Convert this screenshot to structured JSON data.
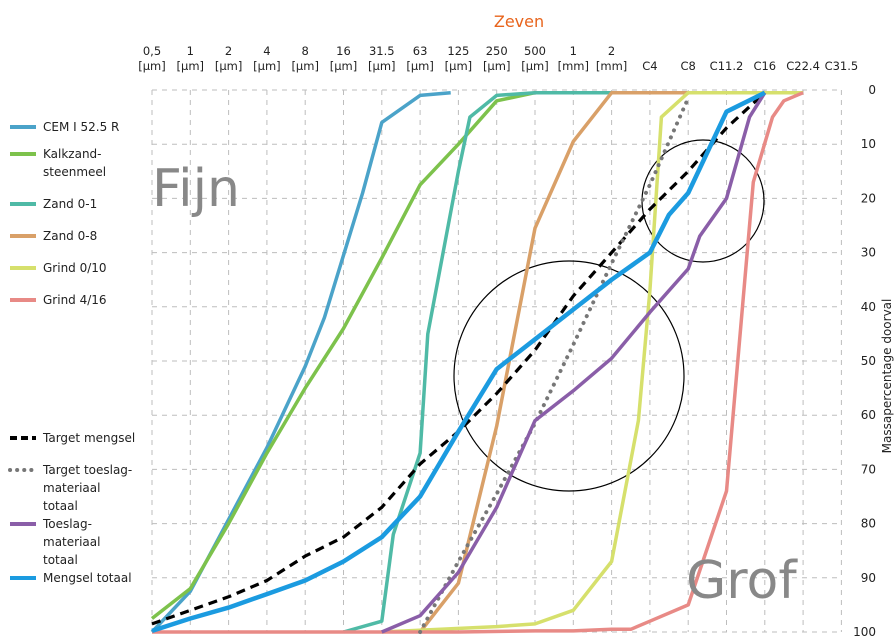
{
  "chart_data": {
    "type": "line",
    "title": "Zeven",
    "ylabel": "Massapercentage doorval",
    "x_ticks": [
      [
        "0,5",
        "[µm]"
      ],
      [
        "1",
        "[µm]"
      ],
      [
        "2",
        "[µm]"
      ],
      [
        "4",
        "[µm]"
      ],
      [
        "8",
        "[µm]"
      ],
      [
        "16",
        "[µm]"
      ],
      [
        "31.5",
        "[µm]"
      ],
      [
        "63",
        "[µm]"
      ],
      [
        "125",
        "[µm]"
      ],
      [
        "250",
        "[µm]"
      ],
      [
        "500",
        "[µm]"
      ],
      [
        "1",
        "[mm]"
      ],
      [
        "2",
        "[mm]"
      ],
      [
        "C4",
        ""
      ],
      [
        "C8",
        ""
      ],
      [
        "C11.2",
        ""
      ],
      [
        "C16",
        ""
      ],
      [
        "C22.4",
        ""
      ],
      [
        "C31.5",
        ""
      ]
    ],
    "y_ticks": [
      "0",
      "10",
      "20",
      "30",
      "40",
      "50",
      "60",
      "70",
      "80",
      "90",
      "100"
    ],
    "ylim": [
      0,
      100
    ],
    "y_inverted": true,
    "grid": true,
    "annotations": {
      "fine": "Fijn",
      "coarse": "Grof"
    },
    "series": [
      {
        "name": "CEM I 52.5 R",
        "color": "#4ba3c9",
        "width": 3.5,
        "dash": "solid",
        "points": [
          [
            0,
            100
          ],
          [
            1,
            92.5
          ],
          [
            3,
            66
          ],
          [
            4,
            51
          ],
          [
            4.5,
            42
          ],
          [
            5.5,
            19
          ],
          [
            6,
            6
          ],
          [
            7,
            1
          ],
          [
            7.8,
            0.5
          ]
        ]
      },
      {
        "name": "Kalkzand-steenmeel",
        "color": "#7dc24c",
        "width": 3.5,
        "dash": "solid",
        "points": [
          [
            0,
            97.5
          ],
          [
            1,
            92
          ],
          [
            2,
            80
          ],
          [
            3,
            67
          ],
          [
            4,
            55
          ],
          [
            5,
            44
          ],
          [
            6,
            31
          ],
          [
            7,
            17.5
          ],
          [
            8,
            10
          ],
          [
            9,
            2
          ],
          [
            10,
            0.5
          ],
          [
            11,
            0.5
          ]
        ]
      },
      {
        "name": "Zand 0-1",
        "color": "#4fbaa6",
        "width": 3.5,
        "dash": "solid",
        "points": [
          [
            5,
            100
          ],
          [
            6,
            98
          ],
          [
            6.3,
            82
          ],
          [
            7,
            67
          ],
          [
            7.2,
            45
          ],
          [
            7.6,
            30
          ],
          [
            8,
            15
          ],
          [
            8.3,
            5
          ],
          [
            9,
            1
          ],
          [
            10,
            0.5
          ],
          [
            11,
            0.5
          ],
          [
            12,
            0.5
          ]
        ]
      },
      {
        "name": "Zand 0-8",
        "color": "#d9a068",
        "width": 3.5,
        "dash": "solid",
        "points": [
          [
            7,
            100
          ],
          [
            8,
            91
          ],
          [
            9,
            62
          ],
          [
            10,
            25.5
          ],
          [
            11,
            9.5
          ],
          [
            12,
            0.5
          ],
          [
            13,
            0.5
          ],
          [
            14,
            0.5
          ],
          [
            15,
            0.5
          ],
          [
            16,
            0.5
          ]
        ]
      },
      {
        "name": "Grind 0/10",
        "color": "#d6e06c",
        "width": 3.5,
        "dash": "solid",
        "points": [
          [
            6,
            100
          ],
          [
            9,
            99
          ],
          [
            10,
            98.5
          ],
          [
            11,
            96
          ],
          [
            12,
            87
          ],
          [
            12.7,
            61
          ],
          [
            13,
            37
          ],
          [
            13.3,
            5
          ],
          [
            14,
            0.5
          ],
          [
            15,
            0.5
          ],
          [
            16,
            0.5
          ],
          [
            17,
            0.5
          ]
        ]
      },
      {
        "name": "Grind 4/16",
        "color": "#e88a86",
        "width": 3.5,
        "dash": "solid",
        "points": [
          [
            0,
            100
          ],
          [
            8,
            100
          ],
          [
            10,
            99.8
          ],
          [
            11,
            99.8
          ],
          [
            12,
            99.5
          ],
          [
            12.5,
            99.5
          ],
          [
            13,
            98
          ],
          [
            14,
            95
          ],
          [
            15,
            74
          ],
          [
            15.7,
            17
          ],
          [
            16.2,
            5
          ],
          [
            16.5,
            2
          ],
          [
            17,
            0.5
          ]
        ]
      },
      {
        "name": "Target mengsel",
        "color": "#000000",
        "width": 3.2,
        "dash": "9,6",
        "points": [
          [
            0,
            98.5
          ],
          [
            1,
            96
          ],
          [
            2,
            93.5
          ],
          [
            3,
            90.5
          ],
          [
            4,
            86
          ],
          [
            5,
            82.5
          ],
          [
            6,
            77
          ],
          [
            7,
            69
          ],
          [
            8,
            63
          ],
          [
            9,
            56
          ],
          [
            10,
            48
          ],
          [
            11,
            38
          ],
          [
            12,
            30
          ],
          [
            13,
            22
          ],
          [
            14,
            15
          ],
          [
            15,
            7
          ],
          [
            16,
            0.5
          ]
        ]
      },
      {
        "name": "Target toeslag-materiaal totaal",
        "color": "#777777",
        "width": 4,
        "dash": "0.1,7.5",
        "points": [
          [
            7,
            100
          ],
          [
            8,
            87
          ],
          [
            9,
            74.5
          ],
          [
            10,
            61.5
          ],
          [
            11,
            47
          ],
          [
            12,
            32
          ],
          [
            13,
            17.5
          ],
          [
            14,
            1.5
          ]
        ]
      },
      {
        "name": "Toeslag-materiaal totaal",
        "color": "#8a5ea8",
        "width": 3.5,
        "dash": "solid",
        "points": [
          [
            6,
            100
          ],
          [
            7,
            97
          ],
          [
            8,
            89
          ],
          [
            9,
            77
          ],
          [
            10,
            61
          ],
          [
            11,
            55.5
          ],
          [
            12,
            49.5
          ],
          [
            13,
            41
          ],
          [
            14,
            33
          ],
          [
            14.3,
            27
          ],
          [
            15,
            20
          ],
          [
            15.6,
            5
          ],
          [
            16,
            0.5
          ]
        ]
      },
      {
        "name": "Mengsel totaal",
        "color": "#1b9be0",
        "width": 4.5,
        "dash": "solid",
        "points": [
          [
            0,
            99.8
          ],
          [
            1,
            97.5
          ],
          [
            2,
            95.5
          ],
          [
            3,
            93
          ],
          [
            4,
            90.5
          ],
          [
            5,
            87
          ],
          [
            6,
            82.5
          ],
          [
            7,
            75
          ],
          [
            8,
            63
          ],
          [
            9,
            51.5
          ],
          [
            10,
            46
          ],
          [
            11,
            40.5
          ],
          [
            12,
            35
          ],
          [
            13,
            30
          ],
          [
            13.5,
            23
          ],
          [
            14,
            19
          ],
          [
            15,
            4
          ],
          [
            16,
            0.5
          ]
        ]
      }
    ],
    "legend_group_1": [
      {
        "lines": [
          "CEM I 52.5 R"
        ],
        "color": "#4ba3c9",
        "style": "solid"
      },
      {
        "lines": [
          "Kalkzand-",
          "steenmeel"
        ],
        "color": "#7dc24c",
        "style": "solid"
      },
      {
        "lines": [
          "Zand 0-1"
        ],
        "color": "#4fbaa6",
        "style": "solid"
      },
      {
        "lines": [
          "Zand 0-8"
        ],
        "color": "#d9a068",
        "style": "solid"
      },
      {
        "lines": [
          "Grind 0/10"
        ],
        "color": "#d6e06c",
        "style": "solid"
      },
      {
        "lines": [
          "Grind 4/16"
        ],
        "color": "#e88a86",
        "style": "solid"
      }
    ],
    "legend_group_2": [
      {
        "lines": [
          "Target mengsel"
        ],
        "color": "#000000",
        "style": "dashed"
      },
      {
        "lines": [
          "Target toeslag-",
          "materiaal",
          "totaal"
        ],
        "color": "#777777",
        "style": "dotted"
      },
      {
        "lines": [
          "Toeslag-",
          "materiaal",
          "totaal"
        ],
        "color": "#8a5ea8",
        "style": "solid"
      },
      {
        "lines": [
          "Mengsel totaal"
        ],
        "color": "#1b9be0",
        "style": "solid"
      }
    ]
  }
}
